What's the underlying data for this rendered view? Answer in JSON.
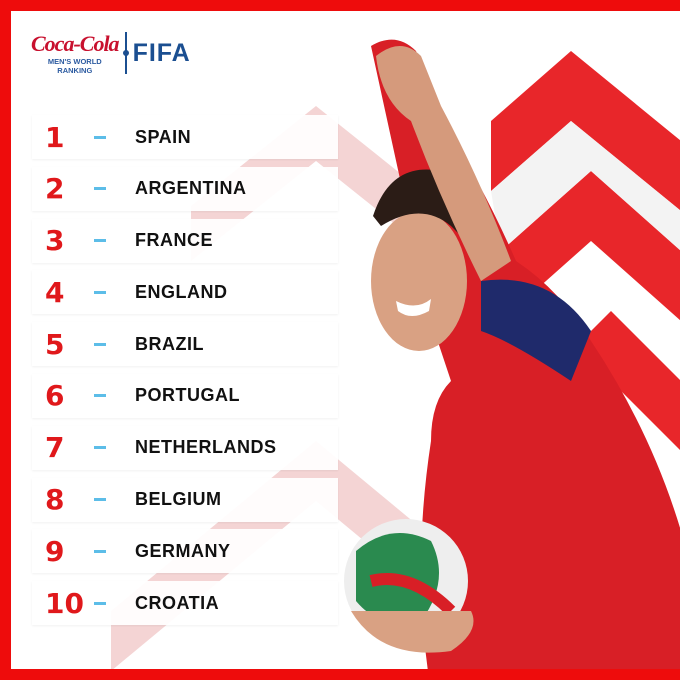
{
  "logo": {
    "brand": "Coca-Cola",
    "subtitle_line1": "MEN'S WORLD",
    "subtitle_line2": "RANKING",
    "fifa": "FIFA"
  },
  "colors": {
    "accent": "#ee0c0c",
    "number": "#e0181b",
    "dash": "#5cbde8",
    "fifa_blue": "#1b4f91"
  },
  "ranking": [
    {
      "rank": "1",
      "country": "SPAIN"
    },
    {
      "rank": "2",
      "country": "ARGENTINA"
    },
    {
      "rank": "3",
      "country": "FRANCE"
    },
    {
      "rank": "4",
      "country": "ENGLAND"
    },
    {
      "rank": "5",
      "country": "BRAZIL"
    },
    {
      "rank": "6",
      "country": "PORTUGAL"
    },
    {
      "rank": "7",
      "country": "NETHERLANDS"
    },
    {
      "rank": "8",
      "country": "BELGIUM"
    },
    {
      "rank": "9",
      "country": "GERMANY"
    },
    {
      "rank": "10",
      "country": "CROATIA"
    }
  ]
}
